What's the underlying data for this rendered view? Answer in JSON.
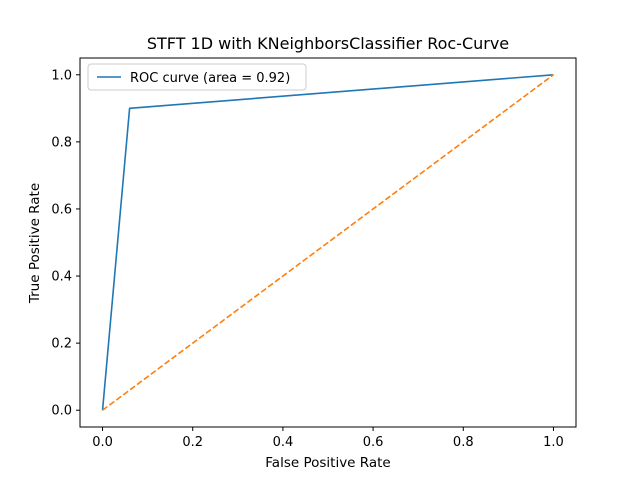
{
  "chart_data": {
    "type": "line",
    "title": "STFT 1D with KNeighborsClassifier Roc-Curve",
    "xlabel": "False Positive Rate",
    "ylabel": "True Positive Rate",
    "xlim": [
      -0.05,
      1.05
    ],
    "ylim": [
      -0.05,
      1.05
    ],
    "xticks": [
      0.0,
      0.2,
      0.4,
      0.6,
      0.8,
      1.0
    ],
    "xtick_labels": [
      "0.0",
      "0.2",
      "0.4",
      "0.6",
      "0.8",
      "1.0"
    ],
    "yticks": [
      0.0,
      0.2,
      0.4,
      0.6,
      0.8,
      1.0
    ],
    "ytick_labels": [
      "0.0",
      "0.2",
      "0.4",
      "0.6",
      "0.8",
      "1.0"
    ],
    "grid": false,
    "legend": "upper-left",
    "series": [
      {
        "name": "ROC curve (area = 0.92)",
        "color": "#1f77b4",
        "style": "solid",
        "x": [
          0.0,
          0.06,
          1.0
        ],
        "y": [
          0.0,
          0.9,
          1.0
        ]
      },
      {
        "color": "#ff7f0e",
        "style": "dashed",
        "x": [
          0.0,
          1.0
        ],
        "y": [
          0.0,
          1.0
        ]
      }
    ]
  }
}
